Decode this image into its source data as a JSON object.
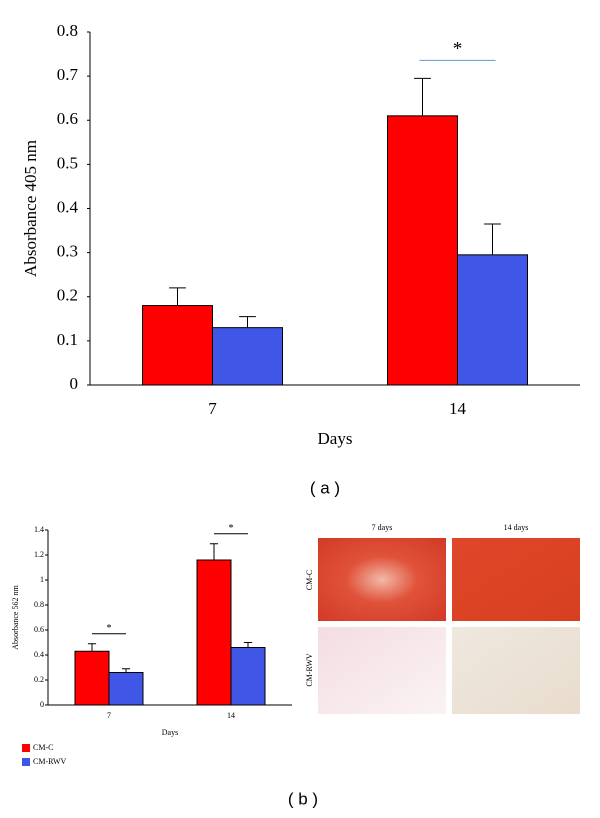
{
  "chart_data": [
    {
      "type": "bar",
      "x_label": "Days",
      "y_label": "Absorbance 405 nm",
      "categories": [
        "7",
        "14"
      ],
      "series": [
        {
          "color": "#ff0000",
          "values": [
            0.18,
            0.61
          ],
          "errors": [
            0.04,
            0.085
          ]
        },
        {
          "color": "#3f56e6",
          "values": [
            0.13,
            0.295
          ],
          "errors": [
            0.025,
            0.07
          ]
        }
      ],
      "annotations": [
        null,
        "*"
      ],
      "ylim": [
        0,
        0.8
      ],
      "yticks": [
        0,
        0.1,
        0.2,
        0.3,
        0.4,
        0.5,
        0.6,
        0.7,
        0.8
      ]
    },
    {
      "type": "bar",
      "x_label": "Days",
      "y_label": "Absorbance 562 nm",
      "categories": [
        "7",
        "14"
      ],
      "series": [
        {
          "name": "CM-C",
          "color": "#ff0000",
          "values": [
            0.43,
            1.16
          ],
          "errors": [
            0.06,
            0.13
          ]
        },
        {
          "name": "CM-RWV",
          "color": "#3f56e6",
          "values": [
            0.26,
            0.46
          ],
          "errors": [
            0.03,
            0.04
          ]
        }
      ],
      "annotations": [
        "*",
        "*"
      ],
      "legend": "bottom-left",
      "ylim": [
        0,
        1.4
      ],
      "yticks": [
        0,
        0.2,
        0.4,
        0.6,
        0.8,
        1,
        1.2,
        1.4
      ]
    }
  ],
  "panel_labels": [
    "( a )",
    "( b )"
  ],
  "micrographs": {
    "columns": [
      "7 days",
      "14 days"
    ],
    "rows": [
      "CM-C",
      "CM-RWV"
    ]
  }
}
